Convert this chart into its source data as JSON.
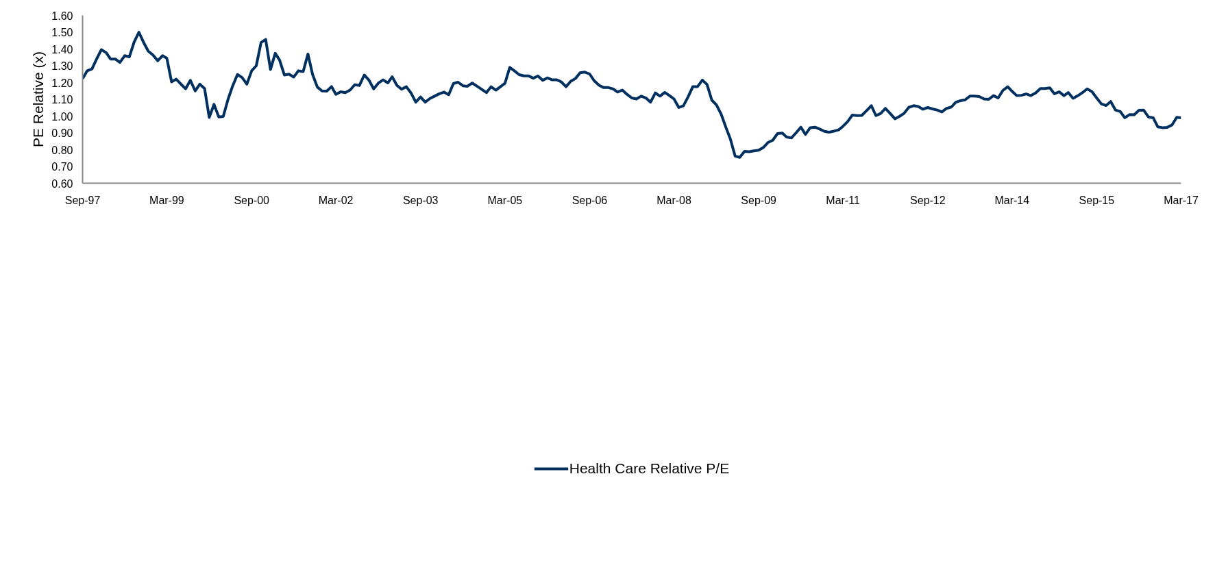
{
  "chart_data": {
    "type": "line",
    "ylabel": "PE Relative (x)",
    "x": [
      "1997-09",
      "1997-10",
      "1997-11",
      "1997-12",
      "1998-01",
      "1998-02",
      "1998-03",
      "1998-04",
      "1998-05",
      "1998-06",
      "1998-07",
      "1998-08",
      "1998-09",
      "1998-10",
      "1998-11",
      "1998-12",
      "1999-01",
      "1999-02",
      "1999-03",
      "1999-04",
      "1999-05",
      "1999-06",
      "1999-07",
      "1999-08",
      "1999-09",
      "1999-10",
      "1999-11",
      "1999-12",
      "2000-01",
      "2000-02",
      "2000-03",
      "2000-04",
      "2000-05",
      "2000-06",
      "2000-07",
      "2000-08",
      "2000-09",
      "2000-10",
      "2000-11",
      "2000-12",
      "2001-01",
      "2001-02",
      "2001-03",
      "2001-04",
      "2001-05",
      "2001-06",
      "2001-07",
      "2001-08",
      "2001-09",
      "2001-10",
      "2001-11",
      "2001-12",
      "2002-01",
      "2002-02",
      "2002-03",
      "2002-04",
      "2002-05",
      "2002-06",
      "2002-07",
      "2002-08",
      "2002-09",
      "2002-10",
      "2002-11",
      "2002-12",
      "2003-01",
      "2003-02",
      "2003-03",
      "2003-04",
      "2003-05",
      "2003-06",
      "2003-07",
      "2003-08",
      "2003-09",
      "2003-10",
      "2003-11",
      "2003-12",
      "2004-01",
      "2004-02",
      "2004-03",
      "2004-04",
      "2004-05",
      "2004-06",
      "2004-07",
      "2004-08",
      "2004-09",
      "2004-10",
      "2004-11",
      "2004-12",
      "2005-01",
      "2005-02",
      "2005-03",
      "2005-04",
      "2005-05",
      "2005-06",
      "2005-07",
      "2005-08",
      "2005-09",
      "2005-10",
      "2005-11",
      "2005-12",
      "2006-01",
      "2006-02",
      "2006-03",
      "2006-04",
      "2006-05",
      "2006-06",
      "2006-07",
      "2006-08",
      "2006-09",
      "2006-10",
      "2006-11",
      "2006-12",
      "2007-01",
      "2007-02",
      "2007-03",
      "2007-04",
      "2007-05",
      "2007-06",
      "2007-07",
      "2007-08",
      "2007-09",
      "2007-10",
      "2007-11",
      "2007-12",
      "2008-01",
      "2008-02",
      "2008-03",
      "2008-04",
      "2008-05",
      "2008-06",
      "2008-07",
      "2008-08",
      "2008-09",
      "2008-10",
      "2008-11",
      "2008-12",
      "2009-01",
      "2009-02",
      "2009-03",
      "2009-04",
      "2009-05",
      "2009-06",
      "2009-07",
      "2009-08",
      "2009-09",
      "2009-10",
      "2009-11",
      "2009-12",
      "2010-01",
      "2010-02",
      "2010-03",
      "2010-04",
      "2010-05",
      "2010-06",
      "2010-07",
      "2010-08",
      "2010-09",
      "2010-10",
      "2010-11",
      "2010-12",
      "2011-01",
      "2011-02",
      "2011-03",
      "2011-04",
      "2011-05",
      "2011-06",
      "2011-07",
      "2011-08",
      "2011-09",
      "2011-10",
      "2011-11",
      "2011-12",
      "2012-01",
      "2012-02",
      "2012-03",
      "2012-04",
      "2012-05",
      "2012-06",
      "2012-07",
      "2012-08",
      "2012-09",
      "2012-10",
      "2012-11",
      "2012-12",
      "2013-01",
      "2013-02",
      "2013-03",
      "2013-04",
      "2013-05",
      "2013-06",
      "2013-07",
      "2013-08",
      "2013-09",
      "2013-10",
      "2013-11",
      "2013-12",
      "2014-01",
      "2014-02",
      "2014-03",
      "2014-04",
      "2014-05",
      "2014-06",
      "2014-07",
      "2014-08",
      "2014-09",
      "2014-10",
      "2014-11",
      "2014-12",
      "2015-01",
      "2015-02",
      "2015-03",
      "2015-04",
      "2015-05",
      "2015-06",
      "2015-07",
      "2015-08",
      "2015-09",
      "2015-10",
      "2015-11",
      "2015-12",
      "2016-01",
      "2016-02",
      "2016-03",
      "2016-04",
      "2016-05",
      "2016-06",
      "2016-07",
      "2016-08",
      "2016-09",
      "2016-10",
      "2016-11",
      "2016-12",
      "2017-01",
      "2017-02",
      "2017-03"
    ],
    "series": [
      {
        "name": "Health Care Relative P/E",
        "color": "#00305f",
        "values": [
          1.222,
          1.27,
          1.281,
          1.34,
          1.396,
          1.378,
          1.34,
          1.34,
          1.32,
          1.36,
          1.353,
          1.44,
          1.5,
          1.44,
          1.387,
          1.364,
          1.33,
          1.36,
          1.345,
          1.204,
          1.22,
          1.19,
          1.163,
          1.213,
          1.15,
          1.19,
          1.164,
          0.992,
          1.07,
          0.995,
          0.998,
          1.1,
          1.18,
          1.248,
          1.23,
          1.19,
          1.27,
          1.3,
          1.438,
          1.457,
          1.278,
          1.374,
          1.334,
          1.245,
          1.25,
          1.233,
          1.27,
          1.265,
          1.37,
          1.248,
          1.173,
          1.15,
          1.149,
          1.176,
          1.13,
          1.145,
          1.14,
          1.155,
          1.187,
          1.183,
          1.245,
          1.215,
          1.162,
          1.196,
          1.216,
          1.198,
          1.234,
          1.183,
          1.16,
          1.175,
          1.138,
          1.083,
          1.114,
          1.083,
          1.105,
          1.119,
          1.133,
          1.143,
          1.127,
          1.194,
          1.202,
          1.181,
          1.178,
          1.197,
          1.178,
          1.16,
          1.14,
          1.175,
          1.155,
          1.176,
          1.195,
          1.29,
          1.27,
          1.247,
          1.24,
          1.24,
          1.226,
          1.239,
          1.213,
          1.228,
          1.216,
          1.216,
          1.204,
          1.175,
          1.207,
          1.224,
          1.258,
          1.262,
          1.251,
          1.21,
          1.184,
          1.17,
          1.17,
          1.162,
          1.143,
          1.155,
          1.13,
          1.108,
          1.102,
          1.119,
          1.108,
          1.083,
          1.138,
          1.119,
          1.141,
          1.122,
          1.102,
          1.051,
          1.062,
          1.116,
          1.176,
          1.176,
          1.215,
          1.188,
          1.095,
          1.067,
          1.011,
          0.931,
          0.864,
          0.762,
          0.754,
          0.79,
          0.788,
          0.793,
          0.797,
          0.813,
          0.843,
          0.856,
          0.896,
          0.899,
          0.875,
          0.87,
          0.9,
          0.934,
          0.891,
          0.931,
          0.934,
          0.923,
          0.909,
          0.904,
          0.91,
          0.918,
          0.939,
          0.968,
          1.006,
          1.003,
          1.004,
          1.032,
          1.062,
          1.003,
          1.016,
          1.046,
          1.016,
          0.984,
          0.998,
          1.017,
          1.052,
          1.062,
          1.057,
          1.041,
          1.051,
          1.043,
          1.036,
          1.025,
          1.046,
          1.054,
          1.082,
          1.092,
          1.097,
          1.119,
          1.119,
          1.116,
          1.102,
          1.1,
          1.122,
          1.108,
          1.153,
          1.175,
          1.148,
          1.122,
          1.124,
          1.132,
          1.122,
          1.138,
          1.164,
          1.164,
          1.168,
          1.133,
          1.145,
          1.122,
          1.14,
          1.106,
          1.121,
          1.14,
          1.162,
          1.146,
          1.108,
          1.073,
          1.063,
          1.087,
          1.036,
          1.027,
          0.99,
          1.009,
          1.008,
          1.035,
          1.036,
          0.995,
          0.99,
          0.936,
          0.931,
          0.933,
          0.947,
          0.993,
          0.99
        ]
      }
    ],
    "xlim": [
      "1997-09",
      "2017-03"
    ],
    "xticks": [
      {
        "value": "1997-09",
        "label": "Sep-97"
      },
      {
        "value": "1999-03",
        "label": "Mar-99"
      },
      {
        "value": "2000-09",
        "label": "Sep-00"
      },
      {
        "value": "2002-03",
        "label": "Mar-02"
      },
      {
        "value": "2003-09",
        "label": "Sep-03"
      },
      {
        "value": "2005-03",
        "label": "Mar-05"
      },
      {
        "value": "2006-09",
        "label": "Sep-06"
      },
      {
        "value": "2008-03",
        "label": "Mar-08"
      },
      {
        "value": "2009-09",
        "label": "Sep-09"
      },
      {
        "value": "2011-03",
        "label": "Mar-11"
      },
      {
        "value": "2012-09",
        "label": "Sep-12"
      },
      {
        "value": "2014-03",
        "label": "Mar-14"
      },
      {
        "value": "2015-09",
        "label": "Sep-15"
      },
      {
        "value": "2017-03",
        "label": "Mar-17"
      }
    ],
    "ylim": [
      0.6,
      1.6
    ],
    "yticks": [
      {
        "value": 0.6,
        "label": "0.60"
      },
      {
        "value": 0.7,
        "label": "0.70"
      },
      {
        "value": 0.8,
        "label": "0.80"
      },
      {
        "value": 0.9,
        "label": "0.90"
      },
      {
        "value": 1.0,
        "label": "1.00"
      },
      {
        "value": 1.1,
        "label": "1.10"
      },
      {
        "value": 1.2,
        "label": "1.20"
      },
      {
        "value": 1.3,
        "label": "1.30"
      },
      {
        "value": 1.4,
        "label": "1.40"
      },
      {
        "value": 1.5,
        "label": "1.50"
      },
      {
        "value": 1.6,
        "label": "1.60"
      }
    ],
    "grid": false,
    "legend": "bottom",
    "marker": "none",
    "line_style": "solid"
  }
}
